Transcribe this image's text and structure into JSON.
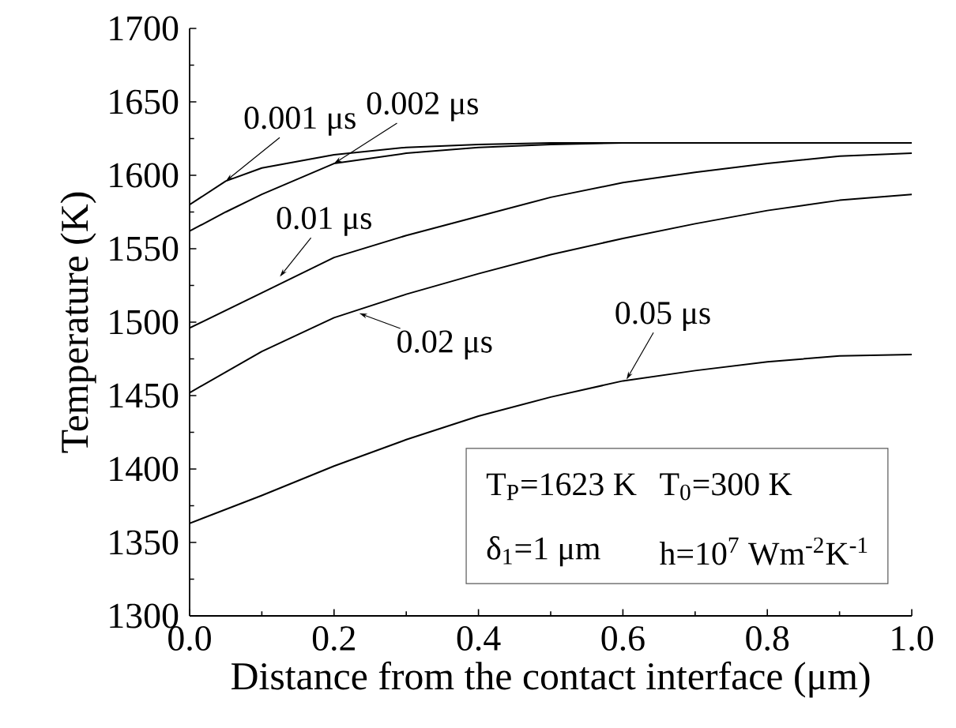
{
  "chart_data": {
    "type": "line",
    "xlabel": "Distance from the contact interface (μm)",
    "ylabel": "Temperature (K)",
    "xlim": [
      0,
      1
    ],
    "ylim": [
      1300,
      1700
    ],
    "xticks": [
      {
        "value": 0,
        "label": "0.0"
      },
      {
        "value": 0.2,
        "label": "0.2"
      },
      {
        "value": 0.4,
        "label": "0.4"
      },
      {
        "value": 0.6,
        "label": "0.6"
      },
      {
        "value": 0.8,
        "label": "0.8"
      },
      {
        "value": 1,
        "label": "1.0"
      }
    ],
    "yticks": [
      1300,
      1350,
      1400,
      1450,
      1500,
      1550,
      1600,
      1650,
      1700
    ],
    "grid": false,
    "marker": "none",
    "line_style": "solid",
    "series": [
      {
        "color": "#000000",
        "x": [
          0,
          0.05,
          0.1,
          0.2,
          0.3,
          0.4,
          0.5,
          0.6,
          0.8,
          1.0
        ],
        "values": [
          1580,
          1596,
          1605,
          1614,
          1619,
          1621,
          1622,
          1622,
          1622,
          1622
        ]
      },
      {
        "color": "#000000",
        "x": [
          0,
          0.05,
          0.1,
          0.2,
          0.3,
          0.4,
          0.5,
          0.6,
          0.8,
          1.0
        ],
        "values": [
          1562,
          1575,
          1587,
          1608,
          1615,
          1619,
          1621,
          1622,
          1622,
          1622
        ]
      },
      {
        "color": "#000000",
        "x": [
          0,
          0.1,
          0.2,
          0.3,
          0.4,
          0.5,
          0.6,
          0.7,
          0.8,
          0.9,
          1.0
        ],
        "values": [
          1496,
          1520,
          1544,
          1559,
          1572,
          1585,
          1595,
          1602,
          1608,
          1613,
          1615
        ]
      },
      {
        "color": "#000000",
        "x": [
          0,
          0.1,
          0.2,
          0.3,
          0.4,
          0.5,
          0.6,
          0.7,
          0.8,
          0.9,
          1.0
        ],
        "values": [
          1452,
          1480,
          1503,
          1519,
          1533,
          1546,
          1557,
          1567,
          1576,
          1583,
          1587
        ]
      },
      {
        "color": "#000000",
        "x": [
          0,
          0.1,
          0.2,
          0.3,
          0.4,
          0.5,
          0.6,
          0.7,
          0.8,
          0.9,
          1.0
        ],
        "values": [
          1363,
          1382,
          1402,
          1420,
          1436,
          1449,
          1460,
          1467,
          1473,
          1477,
          1478
        ]
      }
    ],
    "annotations": [
      {
        "text": "0.001 μs",
        "x": 0.05,
        "y": 1596
      },
      {
        "text": "0.002 μs",
        "x": 0.2,
        "y": 1608
      },
      {
        "text": "0.01 μs",
        "x": 0.125,
        "y": 1531
      },
      {
        "text": "0.02 μs",
        "x": 0.235,
        "y": 1506
      },
      {
        "text": "0.05 μs",
        "x": 0.605,
        "y": 1461
      },
      "T$_{P}$=1623 K",
      "T$_{0}$=300 K",
      "δ$_{1}$=1 μm",
      "h=10$^{7}$ Wm$^{-2}$K$^{-1}$"
    ]
  }
}
